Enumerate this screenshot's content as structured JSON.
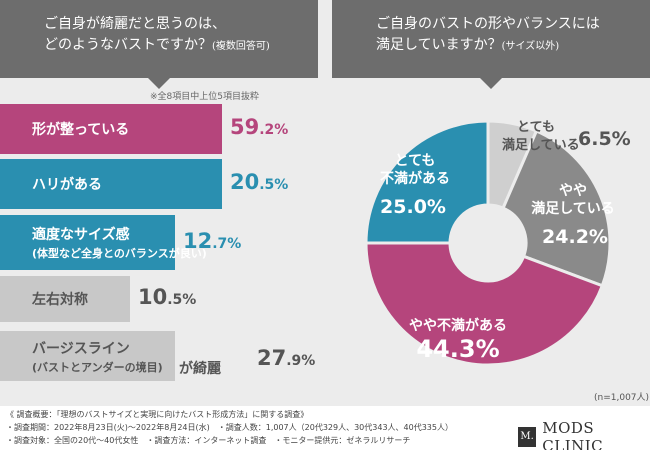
{
  "left_header": {
    "line1": "ご自身が綺麗だと思うのは、",
    "line2": "どのようなバストですか？",
    "note": "(複数回答可)"
  },
  "right_header": {
    "line1": "ご自身のバストの形やバランスには",
    "line2": "満足していますか？",
    "note": "(サイズ以外)"
  },
  "subset_note": "※全8項目中上位5項目抜粋",
  "colors": {
    "pink": "#b5457c",
    "blue": "#2a8fb0",
    "gray": "#c8c8c8",
    "darkgray": "#8a8a8a",
    "lightgray": "#cfcfcf"
  },
  "chart_data": [
    {
      "type": "bar",
      "title": "ご自身が綺麗だと思うのは、どのようなバストですか？(複数回答可)",
      "categories": [
        "形が整っている",
        "ハリがある",
        "適度なサイズ感",
        "左右対称",
        "バージスライン"
      ],
      "category_sublabels": [
        "",
        "",
        "(体型など全身とのバランスが良い)",
        "",
        "(バストとアンダーの境目)"
      ],
      "category_suffix": [
        "",
        "",
        "",
        "",
        "が綺麗"
      ],
      "values": [
        59.2,
        20.5,
        12.7,
        10.5,
        27.9
      ],
      "value_int": [
        "59",
        "20",
        "12",
        "10",
        "27"
      ],
      "value_dec": [
        ".2%",
        ".5%",
        ".7%",
        ".5%",
        ".9%"
      ],
      "bar_colors": [
        "#b5457c",
        "#2a8fb0",
        "#2a8fb0",
        "#c8c8c8",
        "#c8c8c8"
      ],
      "value_colors": [
        "#b5457c",
        "#2a8fb0",
        "#2a8fb0",
        "#555555",
        "#555555"
      ],
      "xlim": [
        0,
        60
      ]
    },
    {
      "type": "pie",
      "title": "ご自身のバストの形やバランスには満足していますか？(サイズ以外)",
      "labels": [
        "とても満足している",
        "やや満足している",
        "やや不満がある",
        "とても不満がある"
      ],
      "label_lines": [
        [
          "とても",
          "満足している"
        ],
        [
          "やや",
          "満足している"
        ],
        [
          "やや不満がある"
        ],
        [
          "とても",
          "不満がある"
        ]
      ],
      "values": [
        6.5,
        24.2,
        44.3,
        25.0
      ],
      "value_text": [
        "6.5%",
        "24.2%",
        "44.3%",
        "25.0%"
      ],
      "colors": [
        "#cfcfcf",
        "#8a8a8a",
        "#b5457c",
        "#2a8fb0"
      ],
      "n_label": "(n=1,007人)"
    }
  ],
  "footer": {
    "line1": "《 調査概要：「理想のバストサイズと実現に向けたバスト形成方法」に関する調査》",
    "line2": "・調査期間：2022年8月23日(火)～2022年8月24日(水)　・調査人数：1,007人（20代329人、30代343人、40代335人）",
    "line3": "・調査対象：全国の20代～40代女性　・調査方法：インターネット調査　・モニター提供元：ゼネラルリサーチ",
    "logo_mark": "M.",
    "logo_text": "MODS CLINIC"
  }
}
